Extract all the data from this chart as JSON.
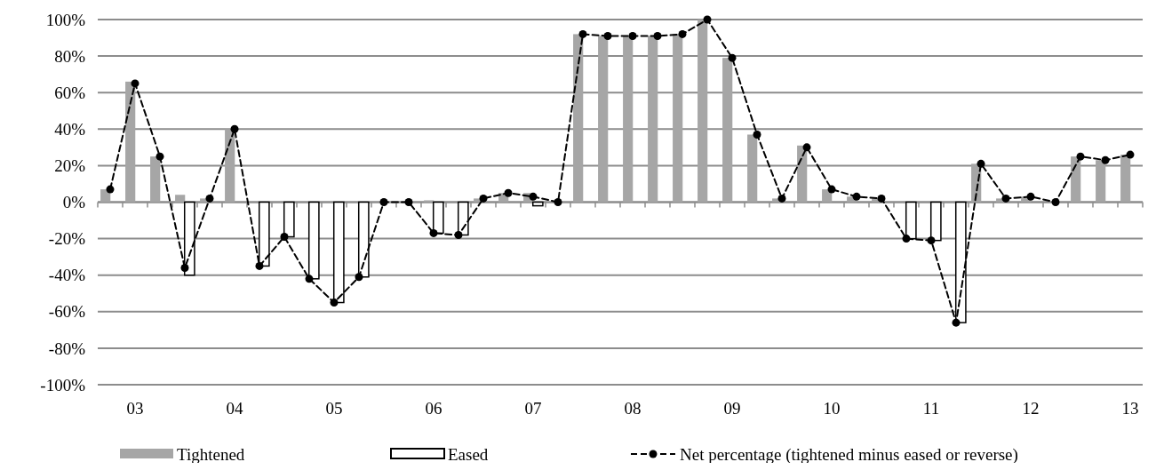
{
  "chart_data": {
    "type": "bar",
    "categories": [
      null,
      "03",
      null,
      null,
      null,
      "04",
      null,
      null,
      null,
      "05",
      null,
      null,
      null,
      "06",
      null,
      null,
      null,
      "07",
      null,
      null,
      null,
      "08",
      null,
      null,
      null,
      "09",
      null,
      null,
      null,
      "10",
      null,
      null,
      null,
      "11",
      null,
      null,
      null,
      "12",
      null,
      null,
      null,
      "13"
    ],
    "series": [
      {
        "name": "Tightened",
        "color": "#a6a6a6",
        "values": [
          7,
          66,
          25,
          4,
          2,
          40,
          0,
          0,
          0,
          0,
          0,
          0,
          0,
          1,
          0,
          2,
          5,
          5,
          0,
          92,
          91,
          91,
          91,
          92,
          100,
          79,
          37,
          2,
          31,
          7,
          3,
          2,
          0,
          0,
          0,
          21,
          2,
          3,
          0,
          25,
          23,
          26
        ]
      },
      {
        "name": "Eased",
        "color": "#ffffff",
        "values": [
          0,
          0,
          0,
          -40,
          0,
          0,
          -35,
          -19,
          -42,
          -55,
          -41,
          0,
          0,
          -17,
          -18,
          0,
          0,
          -2,
          0,
          0,
          0,
          0,
          0,
          0,
          0,
          0,
          0,
          0,
          0,
          0,
          0,
          0,
          -20,
          -21,
          -66,
          0,
          0,
          0,
          0,
          0,
          0,
          0
        ]
      },
      {
        "name": "Net percentage (tightened minus eased or reverse)",
        "type": "line",
        "color": "#000000",
        "values": [
          7,
          65,
          25,
          -36,
          2,
          40,
          -35,
          -19,
          -42,
          -55,
          -41,
          0,
          0,
          -17,
          -18,
          2,
          5,
          3,
          0,
          92,
          91,
          91,
          91,
          92,
          100,
          79,
          37,
          2,
          30,
          7,
          3,
          2,
          -20,
          -21,
          -66,
          21,
          2,
          3,
          0,
          25,
          23,
          26
        ]
      }
    ],
    "ylim": [
      -100,
      100
    ],
    "yticks": [
      {
        "value": -100,
        "label": "-100%"
      },
      {
        "value": -80,
        "label": "-80%"
      },
      {
        "value": -60,
        "label": "-60%"
      },
      {
        "value": -40,
        "label": "-40%"
      },
      {
        "value": -20,
        "label": "-20%"
      },
      {
        "value": 0,
        "label": "0%"
      },
      {
        "value": 20,
        "label": "20%"
      },
      {
        "value": 40,
        "label": "40%"
      },
      {
        "value": 60,
        "label": "60%"
      },
      {
        "value": 80,
        "label": "80%"
      },
      {
        "value": 100,
        "label": "100%"
      }
    ],
    "grid": "y",
    "legend": "bottom",
    "marker": "circle",
    "line_style": "dashed"
  }
}
